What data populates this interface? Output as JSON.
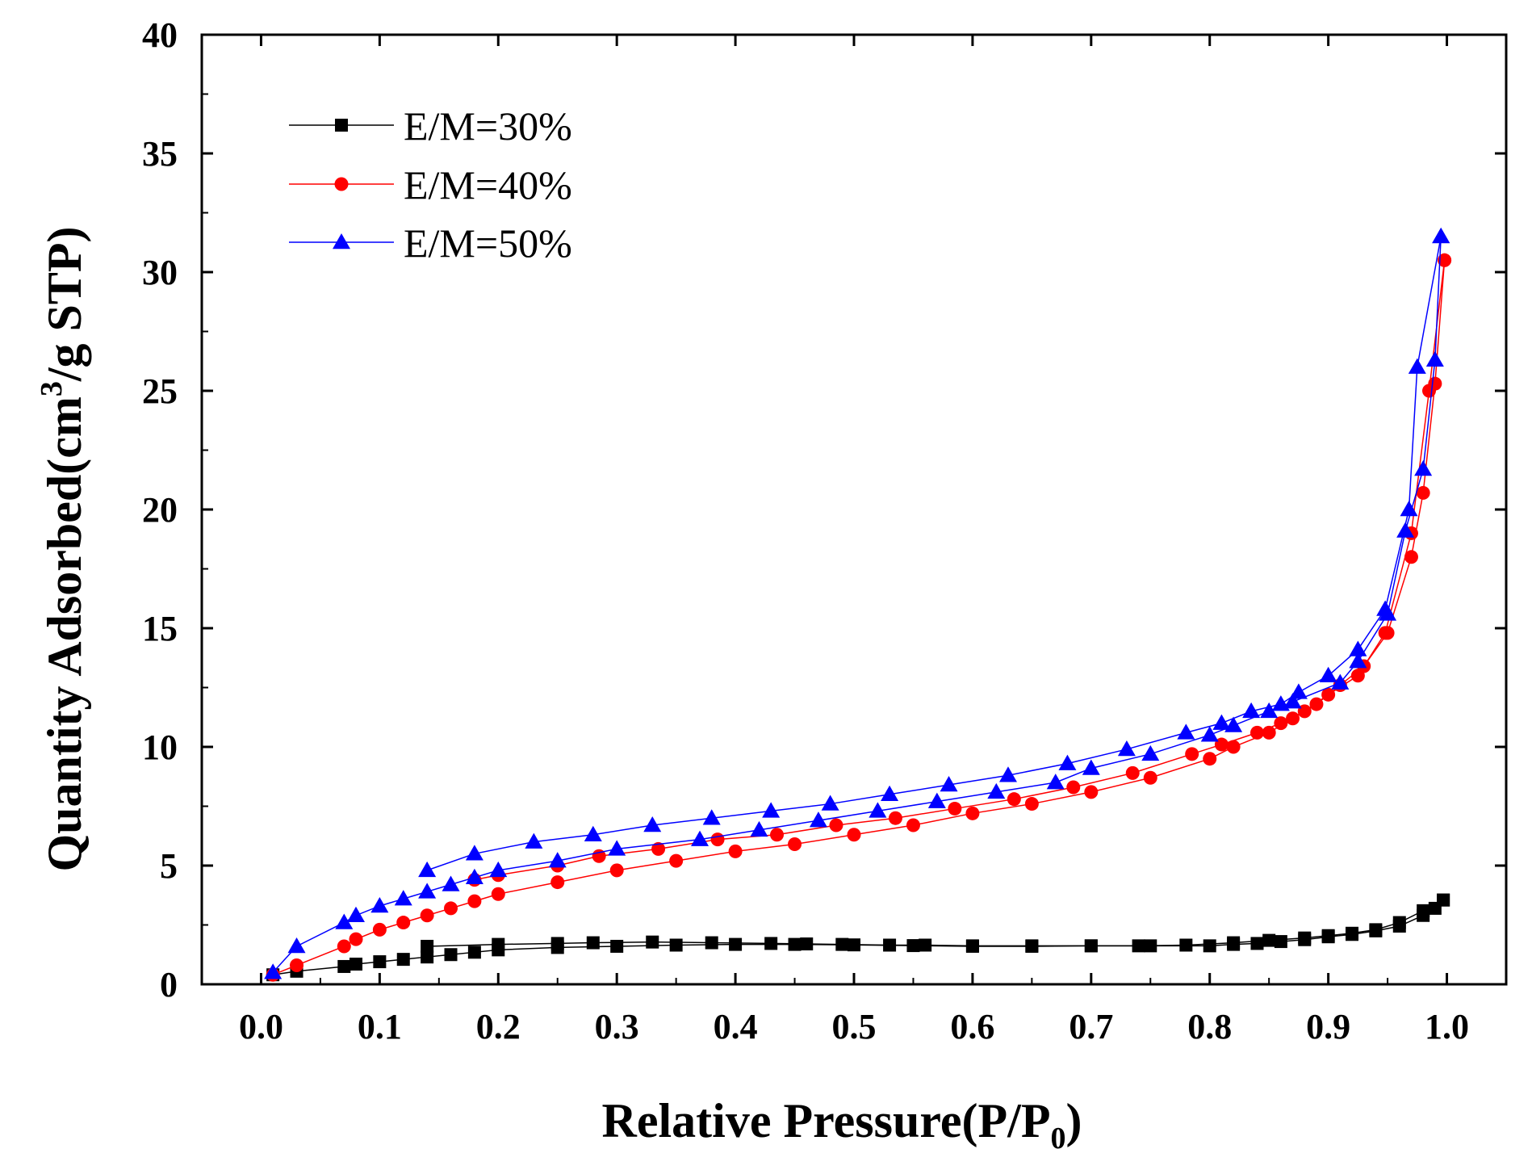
{
  "chart_data": {
    "type": "line",
    "title": "",
    "xlabel": "Relative Pressure(P/P",
    "xlabel_sub": "0",
    "xlabel_end": ")",
    "ylabel": "Quantity Adsorbed(cm",
    "ylabel_sup": "3",
    "ylabel_end": "/g STP)",
    "xlim": [
      -0.05,
      1.05
    ],
    "ylim": [
      0,
      40
    ],
    "xticks": [
      0.0,
      0.1,
      0.2,
      0.3,
      0.4,
      0.5,
      0.6,
      0.7,
      0.8,
      0.9,
      1.0
    ],
    "xtick_labels": [
      "0.0",
      "0.1",
      "0.2",
      "0.3",
      "0.4",
      "0.5",
      "0.6",
      "0.7",
      "0.8",
      "0.9",
      "1.0"
    ],
    "yticks": [
      0,
      5,
      10,
      15,
      20,
      25,
      30,
      35,
      40
    ],
    "ytick_labels": [
      "0",
      "5",
      "10",
      "15",
      "20",
      "25",
      "30",
      "35",
      "40"
    ],
    "legend_position": "top-left",
    "series": [
      {
        "name": "E/M=30%",
        "color": "#000000",
        "marker": "square",
        "adsorption": {
          "x": [
            0.01,
            0.03,
            0.07,
            0.08,
            0.1,
            0.12,
            0.14,
            0.16,
            0.18,
            0.2,
            0.25,
            0.3,
            0.35,
            0.4,
            0.45,
            0.5,
            0.55,
            0.6,
            0.65,
            0.7,
            0.75,
            0.8,
            0.82,
            0.84,
            0.86,
            0.88,
            0.9,
            0.92,
            0.94,
            0.96,
            0.98,
            0.99,
            0.997
          ],
          "y": [
            0.4,
            0.55,
            0.75,
            0.85,
            0.95,
            1.05,
            1.15,
            1.25,
            1.35,
            1.45,
            1.55,
            1.6,
            1.65,
            1.68,
            1.68,
            1.66,
            1.63,
            1.6,
            1.6,
            1.62,
            1.62,
            1.62,
            1.68,
            1.72,
            1.8,
            1.88,
            2.0,
            2.1,
            2.25,
            2.45,
            2.9,
            3.2,
            3.55
          ]
        },
        "desorption": {
          "x": [
            0.997,
            0.98,
            0.96,
            0.94,
            0.92,
            0.9,
            0.88,
            0.85,
            0.82,
            0.78,
            0.74,
            0.7,
            0.65,
            0.6,
            0.56,
            0.53,
            0.49,
            0.46,
            0.43,
            0.38,
            0.33,
            0.28,
            0.25,
            0.2,
            0.14
          ],
          "y": [
            3.55,
            3.1,
            2.6,
            2.3,
            2.15,
            2.05,
            1.95,
            1.85,
            1.75,
            1.65,
            1.62,
            1.62,
            1.62,
            1.62,
            1.65,
            1.65,
            1.68,
            1.7,
            1.72,
            1.75,
            1.78,
            1.75,
            1.72,
            1.68,
            1.6
          ]
        }
      },
      {
        "name": "E/M=40%",
        "color": "#ff0000",
        "marker": "circle",
        "adsorption": {
          "x": [
            0.01,
            0.03,
            0.07,
            0.08,
            0.1,
            0.12,
            0.14,
            0.16,
            0.18,
            0.2,
            0.25,
            0.3,
            0.35,
            0.4,
            0.45,
            0.5,
            0.55,
            0.6,
            0.65,
            0.7,
            0.75,
            0.8,
            0.82,
            0.85,
            0.87,
            0.89,
            0.91,
            0.93,
            0.95,
            0.97,
            0.98,
            0.99,
            0.998
          ],
          "y": [
            0.4,
            0.8,
            1.6,
            1.9,
            2.3,
            2.6,
            2.9,
            3.2,
            3.5,
            3.8,
            4.3,
            4.8,
            5.2,
            5.6,
            5.9,
            6.3,
            6.7,
            7.2,
            7.6,
            8.1,
            8.7,
            9.5,
            10.0,
            10.6,
            11.2,
            11.8,
            12.6,
            13.4,
            14.8,
            18.0,
            20.7,
            25.3,
            30.5
          ]
        },
        "desorption": {
          "x": [
            0.998,
            0.985,
            0.97,
            0.948,
            0.925,
            0.9,
            0.88,
            0.86,
            0.84,
            0.81,
            0.785,
            0.735,
            0.685,
            0.635,
            0.585,
            0.535,
            0.485,
            0.435,
            0.385,
            0.335,
            0.285,
            0.25,
            0.2,
            0.18
          ],
          "y": [
            30.5,
            25.0,
            19.0,
            14.8,
            13.0,
            12.2,
            11.5,
            11.0,
            10.6,
            10.1,
            9.7,
            8.9,
            8.3,
            7.8,
            7.4,
            7.0,
            6.7,
            6.3,
            6.1,
            5.7,
            5.4,
            5.0,
            4.6,
            4.4
          ]
        }
      },
      {
        "name": "E/M=50%",
        "color": "#0000ff",
        "marker": "triangle",
        "adsorption": {
          "x": [
            0.01,
            0.03,
            0.07,
            0.08,
            0.1,
            0.12,
            0.14,
            0.16,
            0.18,
            0.2,
            0.25,
            0.3,
            0.37,
            0.42,
            0.47,
            0.52,
            0.57,
            0.62,
            0.67,
            0.7,
            0.75,
            0.8,
            0.82,
            0.85,
            0.87,
            0.91,
            0.925,
            0.95,
            0.965,
            0.98,
            0.99,
            0.995
          ],
          "y": [
            0.5,
            1.6,
            2.6,
            2.9,
            3.3,
            3.6,
            3.9,
            4.2,
            4.5,
            4.8,
            5.2,
            5.7,
            6.1,
            6.5,
            6.9,
            7.3,
            7.7,
            8.1,
            8.5,
            9.1,
            9.7,
            10.5,
            10.9,
            11.5,
            11.9,
            12.7,
            13.6,
            15.6,
            19.1,
            21.7,
            26.3,
            31.5
          ]
        },
        "desorption": {
          "x": [
            0.995,
            0.975,
            0.968,
            0.948,
            0.925,
            0.9,
            0.875,
            0.86,
            0.835,
            0.81,
            0.78,
            0.73,
            0.68,
            0.63,
            0.58,
            0.53,
            0.48,
            0.43,
            0.38,
            0.33,
            0.28,
            0.23,
            0.18,
            0.14
          ],
          "y": [
            31.5,
            26.0,
            20.0,
            15.8,
            14.1,
            13.0,
            12.3,
            11.8,
            11.5,
            11.0,
            10.6,
            9.9,
            9.3,
            8.8,
            8.4,
            8.0,
            7.6,
            7.3,
            7.0,
            6.7,
            6.3,
            6.0,
            5.5,
            4.8
          ]
        }
      }
    ]
  }
}
